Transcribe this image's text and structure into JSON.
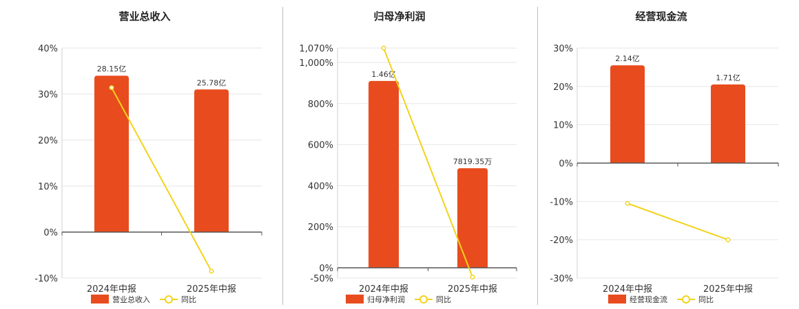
{
  "legend_yoy_label": "同比",
  "colors": {
    "bar": "#E84C1E",
    "line": "#F2D31B",
    "grid": "#e6e6e6",
    "axis": "#555555"
  },
  "chart_data": [
    {
      "type": "bar",
      "title": "营业总收入",
      "categories": [
        "2024年中报",
        "2025年中报"
      ],
      "series": [
        {
          "name": "营业总收入",
          "kind": "bar",
          "values": [
            28.15,
            25.78
          ],
          "labels": [
            "28.15亿",
            "25.78亿"
          ],
          "bar_pct": [
            34,
            31
          ]
        },
        {
          "name": "同比",
          "kind": "line",
          "values": [
            31.4,
            -8.5
          ]
        }
      ],
      "ylim": [
        -10,
        40
      ],
      "yticks": [
        -10,
        0,
        10,
        20,
        30,
        40
      ],
      "ytick_labels": [
        "-10%",
        "0%",
        "10%",
        "20%",
        "30%",
        "40%"
      ],
      "grid": true,
      "legend": "bottom"
    },
    {
      "type": "bar",
      "title": "归母净利润",
      "categories": [
        "2024年中报",
        "2025年中报"
      ],
      "series": [
        {
          "name": "归母净利润",
          "kind": "bar",
          "values": [
            1.46,
            0.781935
          ],
          "labels": [
            "1.46亿",
            "7819.35万"
          ],
          "bar_pct": [
            910,
            485
          ]
        },
        {
          "name": "同比",
          "kind": "line",
          "values": [
            1070,
            -45
          ]
        }
      ],
      "ylim": [
        -50,
        1070
      ],
      "yticks": [
        -50,
        0,
        200,
        400,
        600,
        800,
        1000,
        1070
      ],
      "ytick_labels": [
        "-50%",
        "0%",
        "200%",
        "400%",
        "600%",
        "800%",
        "1,000%",
        "1,070%"
      ],
      "grid": true,
      "legend": "bottom"
    },
    {
      "type": "bar",
      "title": "经营现金流",
      "categories": [
        "2024年中报",
        "2025年中报"
      ],
      "series": [
        {
          "name": "经营现金流",
          "kind": "bar",
          "values": [
            2.14,
            1.71
          ],
          "labels": [
            "2.14亿",
            "1.71亿"
          ],
          "bar_pct": [
            25.5,
            20.5
          ]
        },
        {
          "name": "同比",
          "kind": "line",
          "values": [
            -10.5,
            -20
          ]
        }
      ],
      "ylim": [
        -30,
        30
      ],
      "yticks": [
        -30,
        -20,
        -10,
        0,
        10,
        20,
        30
      ],
      "ytick_labels": [
        "-30%",
        "-20%",
        "-10%",
        "0%",
        "10%",
        "20%",
        "30%"
      ],
      "grid": true,
      "legend": "bottom"
    }
  ]
}
